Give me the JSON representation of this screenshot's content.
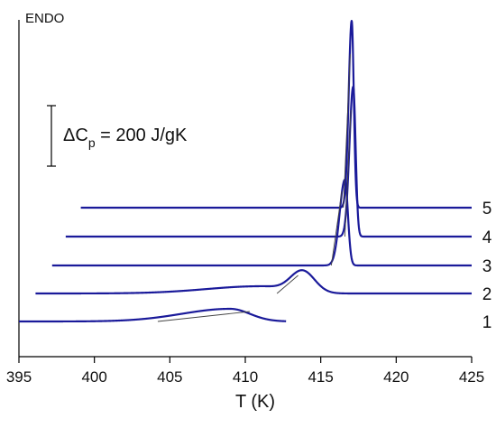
{
  "chart_data": {
    "type": "line",
    "title": "",
    "xlabel": "T (K)",
    "ylabel": "ENDO",
    "xlim": [
      395,
      425
    ],
    "xticks": [
      395,
      400,
      405,
      410,
      415,
      420,
      425
    ],
    "grid": false,
    "legend": "none",
    "scale_bar": {
      "label": "ΔC",
      "subscript": "p",
      "value_text": " = 200 J/gK"
    },
    "series": [
      {
        "name": "1",
        "baseline_start": 395,
        "baseline_end": 412.7,
        "peaks": [
          {
            "center": 409.0,
            "height": 14,
            "width_left": 3.2,
            "width_right": 1.3
          }
        ],
        "tangent": [
          [
            404.2,
            0
          ],
          [
            410.3,
            11
          ]
        ]
      },
      {
        "name": "2",
        "baseline_start": 396.1,
        "baseline_end": 425,
        "peaks": [
          {
            "center": 411.0,
            "height": 8,
            "width_left": 3.6,
            "width_right": 1.6
          },
          {
            "center": 413.8,
            "height": 24,
            "width_left": 0.8,
            "width_right": 0.8
          }
        ],
        "tangent": [
          [
            412.1,
            0
          ],
          [
            413.5,
            20
          ]
        ]
      },
      {
        "name": "3",
        "baseline_start": 397.2,
        "baseline_end": 425,
        "peaks": [
          {
            "center": 416.6,
            "height": 95,
            "width_left": 0.35,
            "width_right": 0.2
          }
        ],
        "tangent": [
          [
            415.7,
            0
          ],
          [
            416.4,
            82
          ]
        ]
      },
      {
        "name": "4",
        "baseline_start": 398.1,
        "baseline_end": 425,
        "peaks": [
          {
            "center": 417.15,
            "height": 166,
            "width_left": 0.25,
            "width_right": 0.16
          }
        ],
        "tangent": [
          [
            416.6,
            0
          ],
          [
            417.0,
            140
          ]
        ]
      },
      {
        "name": "5",
        "baseline_start": 399.1,
        "baseline_end": 425,
        "peaks": [
          {
            "center": 417.05,
            "height": 207,
            "width_left": 0.2,
            "width_right": 0.14
          }
        ],
        "tangent": [
          [
            416.5,
            0
          ],
          [
            416.95,
            170
          ]
        ]
      }
    ]
  }
}
